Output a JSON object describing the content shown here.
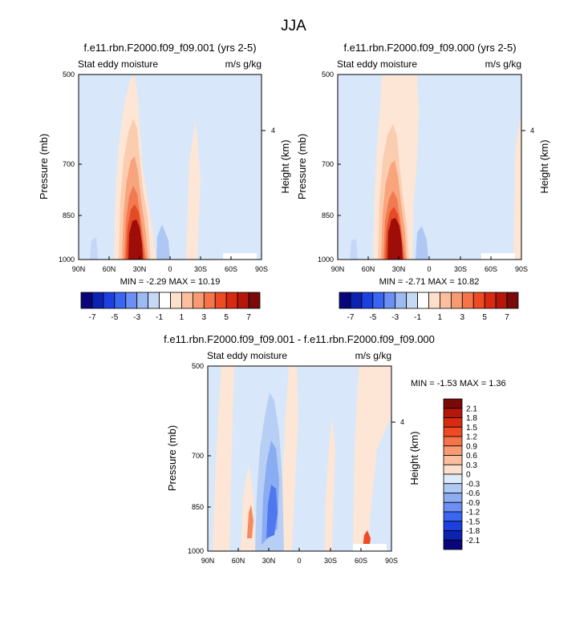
{
  "chart_data": [
    {
      "type": "heatmap",
      "title": "f.e11.rbn.F2000.f09_f09.001 (yrs 2-5)",
      "subtitle_left": "Stat eddy moisture",
      "subtitle_right": "m/s g/kg",
      "ylabel": "Pressure (mb)",
      "ylabel_right": "Height (km)",
      "x_ticks": [
        "90N",
        "60N",
        "30N",
        "0",
        "30S",
        "60S",
        "90S"
      ],
      "y_ticks": [
        "500",
        "700",
        "850",
        "1000"
      ],
      "y_right_ticks": [
        "4"
      ],
      "min_max_text": "MIN =  -2.29   MAX =  10.19",
      "min": -2.29,
      "max": 10.19,
      "peak": {
        "latitude": 30,
        "pressure": 950,
        "value": 10.19
      }
    },
    {
      "type": "heatmap",
      "title": "f.e11.rbn.F2000.f09_f09.000 (yrs 2-5)",
      "subtitle_left": "Stat eddy moisture",
      "subtitle_right": "m/s g/kg",
      "ylabel": "Pressure (mb)",
      "ylabel_right": "Height (km)",
      "x_ticks": [
        "90N",
        "60N",
        "30N",
        "0",
        "30S",
        "60S",
        "90S"
      ],
      "y_ticks": [
        "500",
        "700",
        "850",
        "1000"
      ],
      "y_right_ticks": [
        "4"
      ],
      "min_max_text": "MIN =  -2.71   MAX =  10.82",
      "min": -2.71,
      "max": 10.82,
      "peak": {
        "latitude": 30,
        "pressure": 950,
        "value": 10.82
      }
    },
    {
      "type": "heatmap",
      "title": "f.e11.rbn.F2000.f09_f09.001 - f.e11.rbn.F2000.f09_f09.000",
      "subtitle_left": "Stat eddy moisture",
      "subtitle_right": "m/s g/kg",
      "ylabel": "Pressure (mb)",
      "ylabel_right": "Height (km)",
      "x_ticks": [
        "90N",
        "60N",
        "30N",
        "0",
        "30S",
        "60S",
        "90S"
      ],
      "y_ticks": [
        "500",
        "700",
        "850",
        "1000"
      ],
      "y_right_ticks": [
        "4"
      ],
      "min_max_text": "MIN =  -1.53   MAX =   1.36",
      "min": -1.53,
      "max": 1.36
    }
  ],
  "figure": {
    "title": "JJA"
  },
  "colorbar_top": {
    "labels": [
      "-7",
      "-5",
      "-3",
      "-1",
      "1",
      "3",
      "5",
      "7"
    ],
    "colors": [
      "#08067a",
      "#0c22b0",
      "#1c40e0",
      "#3a66f2",
      "#6b8ff2",
      "#9dbaf2",
      "#c6d8f4",
      "#ffffff",
      "#fde0cc",
      "#fbbfa0",
      "#f99b72",
      "#f5744a",
      "#ee4a24",
      "#d82a10",
      "#b5160b",
      "#7a0a07"
    ]
  },
  "colorbar_diff": {
    "labels": [
      "2.1",
      "1.8",
      "1.5",
      "1.2",
      "0.9",
      "0.6",
      "0.3",
      "0",
      "-0.3",
      "-0.6",
      "-0.9",
      "-1.2",
      "-1.5",
      "-1.8",
      "-2.1"
    ],
    "colors": [
      "#7a0a07",
      "#b5160b",
      "#d82a10",
      "#ee4a24",
      "#f5744a",
      "#f99b72",
      "#fbbfa0",
      "#fde0cc",
      "#ddeaf9",
      "#b0c8f4",
      "#8eacf2",
      "#6b8ff2",
      "#3a66f2",
      "#1c40e0",
      "#0c22b0",
      "#08067a"
    ]
  }
}
